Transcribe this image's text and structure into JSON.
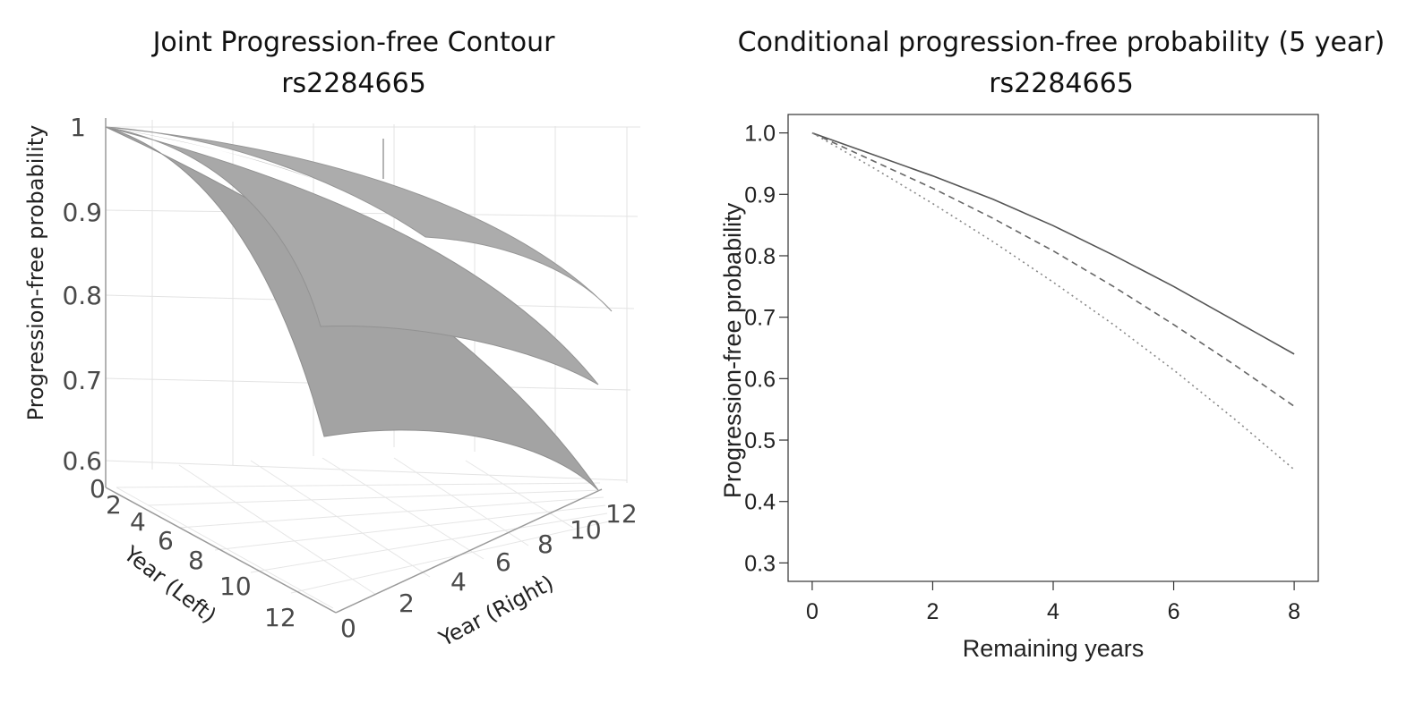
{
  "chart_data": [
    {
      "type": "surface3d",
      "title": "Joint Progression-free Contour",
      "subtitle": "rs2284665",
      "zlabel": "Progression-free probability",
      "xlabel": "Year (Left)",
      "ylabel": "Year (Right)",
      "z_ticks": [
        "1",
        "0.9",
        "0.8",
        "0.7",
        "0.6"
      ],
      "x_ticks": [
        "0",
        "2",
        "4",
        "6",
        "8",
        "10",
        "12"
      ],
      "y_ticks": [
        "0",
        "2",
        "4",
        "6",
        "8",
        "10",
        "12"
      ],
      "zlim": [
        0.6,
        1
      ],
      "xlim": [
        0,
        12
      ],
      "ylim": [
        0,
        12
      ],
      "grid": true,
      "surface_color": "#a6a6a6",
      "series": [
        {
          "values": [
            [
              0,
              1.0
            ],
            [
              4,
              0.97
            ],
            [
              8,
              0.92
            ],
            [
              12,
              0.88
            ]
          ]
        },
        {
          "values": [
            [
              0,
              1.0
            ],
            [
              4,
              0.95
            ],
            [
              8,
              0.87
            ],
            [
              12,
              0.8
            ]
          ]
        },
        {
          "values": [
            [
              0,
              1.0
            ],
            [
              4,
              0.93
            ],
            [
              8,
              0.83
            ],
            [
              12,
              0.74
            ]
          ]
        }
      ]
    },
    {
      "type": "line",
      "title": "Conditional progression-free probability (5 year)",
      "subtitle": "rs2284665",
      "xlabel": "Remaining years",
      "ylabel": "Progression-free probability",
      "x_ticks": [
        "0",
        "2",
        "4",
        "6",
        "8"
      ],
      "y_ticks": [
        "1.0",
        "0.9",
        "0.8",
        "0.7",
        "0.6",
        "0.5",
        "0.4",
        "0.3"
      ],
      "xlim": [
        -0.4,
        8.4
      ],
      "ylim": [
        0.27,
        1.03
      ],
      "grid": false,
      "x": [
        0,
        1,
        2,
        3,
        4,
        5,
        6,
        7,
        8
      ],
      "series": [
        {
          "style": "solid",
          "color": "#555555",
          "values": [
            1.0,
            0.965,
            0.93,
            0.892,
            0.849,
            0.801,
            0.75,
            0.695,
            0.64
          ]
        },
        {
          "style": "dashed",
          "color": "#666666",
          "values": [
            1.0,
            0.955,
            0.91,
            0.861,
            0.808,
            0.75,
            0.688,
            0.623,
            0.555
          ]
        },
        {
          "style": "dotted",
          "color": "#888888",
          "values": [
            1.0,
            0.944,
            0.885,
            0.823,
            0.757,
            0.688,
            0.614,
            0.535,
            0.452
          ]
        }
      ]
    }
  ]
}
